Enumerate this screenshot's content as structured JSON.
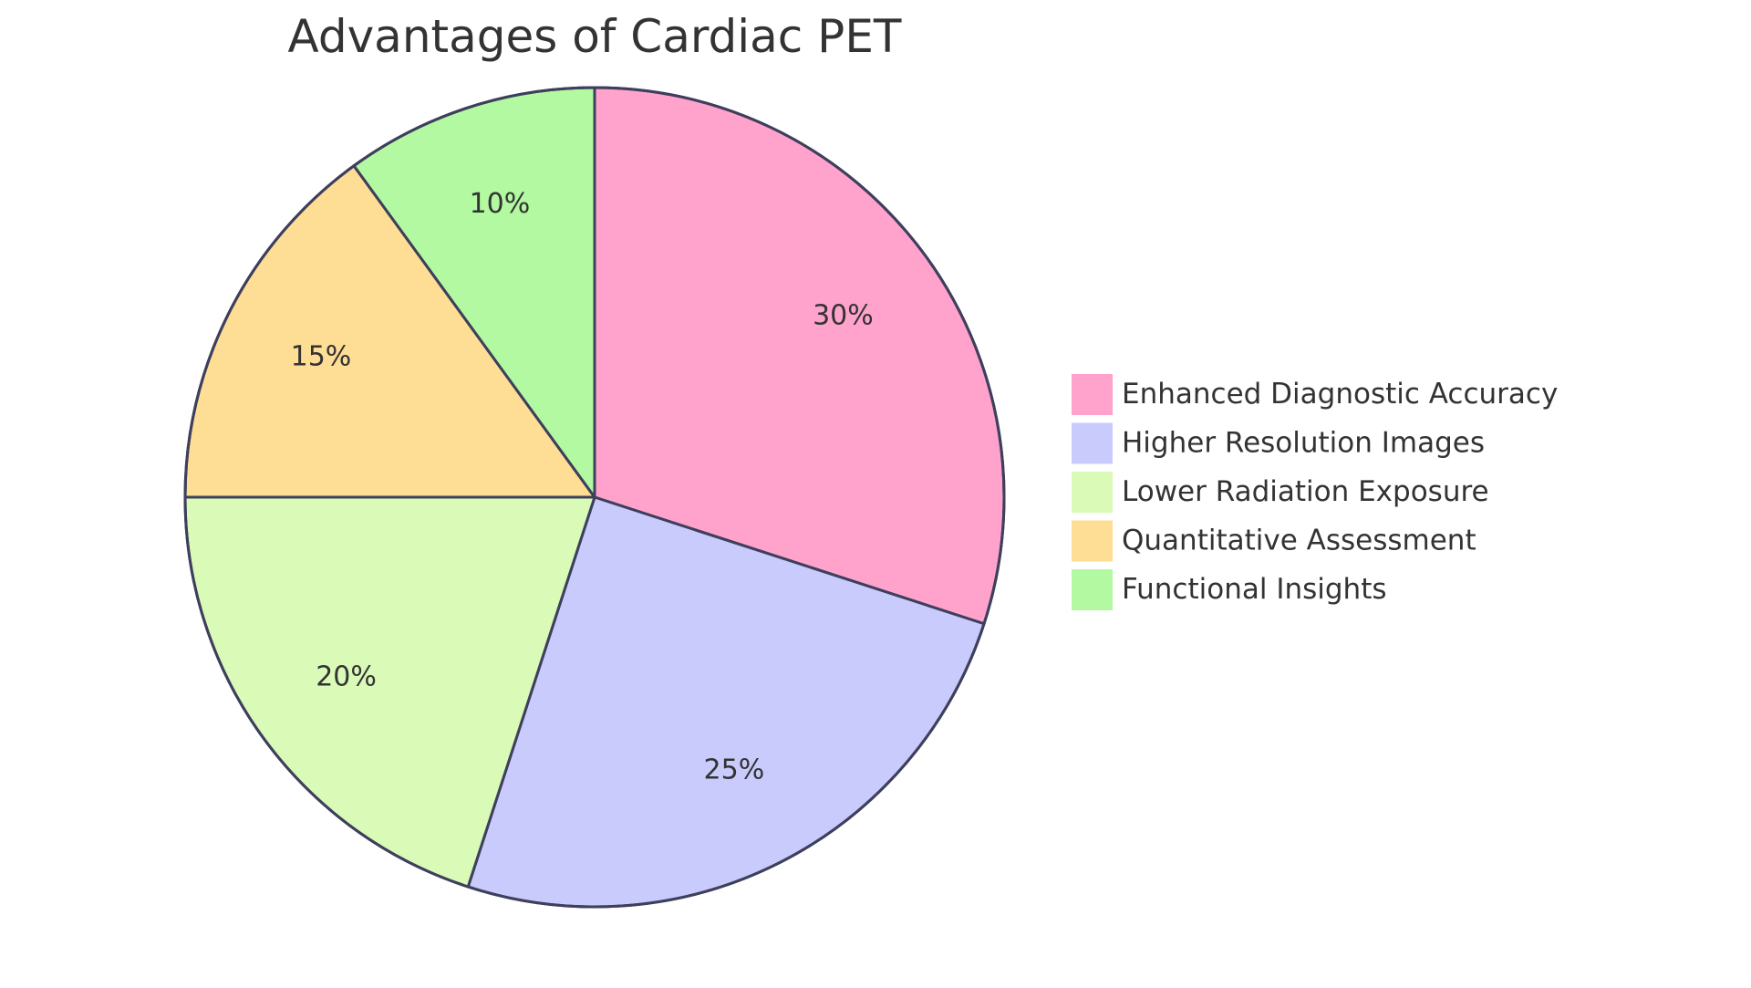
{
  "chart_data": {
    "type": "pie",
    "title": "Advantages of Cardiac PET",
    "categories": [
      "Enhanced Diagnostic Accuracy",
      "Higher Resolution Images",
      "Lower Radiation Exposure",
      "Quantitative Assessment",
      "Functional Insights"
    ],
    "values": [
      30,
      25,
      20,
      15,
      10
    ],
    "value_labels": [
      "30%",
      "25%",
      "20%",
      "15%",
      "10%"
    ],
    "colors": [
      "#ffa3cd",
      "#cacbfd",
      "#dafab8",
      "#fedd95",
      "#b3f9a1"
    ],
    "stroke_color": "#3d3f5c",
    "start_angle_degrees": 0,
    "direction": "clockwise",
    "legend_position": "right"
  }
}
